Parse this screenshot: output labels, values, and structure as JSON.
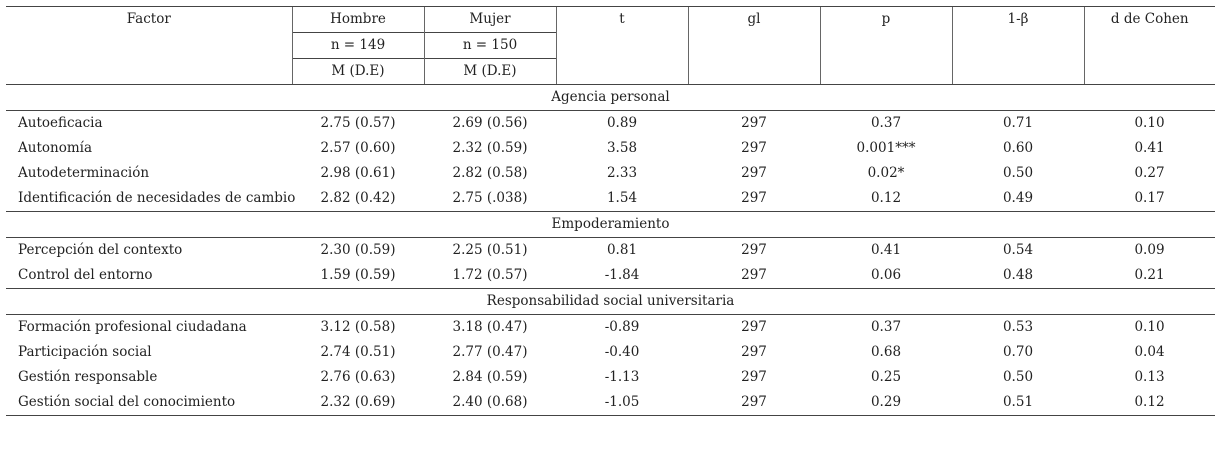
{
  "headers": {
    "factor": "Factor",
    "hombre": "Hombre",
    "mujer": "Mujer",
    "t": "t",
    "gl": "gl",
    "p": "p",
    "power": "1-β",
    "d": "d de Cohen",
    "n_hombre": "n = 149",
    "n_mujer": "n = 150",
    "md_hombre": "M (D.E)",
    "md_mujer": "M (D.E)"
  },
  "sections": [
    {
      "title": "Agencia personal",
      "rows": [
        {
          "factor": "Autoeficacia",
          "hombre": "2.75 (0.57)",
          "mujer": "2.69 (0.56)",
          "t": "0.89",
          "gl": "297",
          "p": "0.37",
          "power": "0.71",
          "d": "0.10"
        },
        {
          "factor": "Autonomía",
          "hombre": "2.57 (0.60)",
          "mujer": "2.32 (0.59)",
          "t": "3.58",
          "gl": "297",
          "p": "0.001***",
          "power": "0.60",
          "d": "0.41"
        },
        {
          "factor": "Autodeterminación",
          "hombre": "2.98 (0.61)",
          "mujer": "2.82 (0.58)",
          "t": "2.33",
          "gl": "297",
          "p": "0.02*",
          "power": "0.50",
          "d": "0.27"
        },
        {
          "factor": "Identificación de necesidades de cambio",
          "hombre": "2.82 (0.42)",
          "mujer": "2.75 (.038)",
          "t": "1.54",
          "gl": "297",
          "p": "0.12",
          "power": "0.49",
          "d": "0.17"
        }
      ]
    },
    {
      "title": "Empoderamiento",
      "rows": [
        {
          "factor": "Percepción del contexto",
          "hombre": "2.30 (0.59)",
          "mujer": "2.25 (0.51)",
          "t": "0.81",
          "gl": "297",
          "p": "0.41",
          "power": "0.54",
          "d": "0.09"
        },
        {
          "factor": "Control del entorno",
          "hombre": "1.59 (0.59)",
          "mujer": "1.72 (0.57)",
          "t": "-1.84",
          "gl": "297",
          "p": "0.06",
          "power": "0.48",
          "d": "0.21"
        }
      ]
    },
    {
      "title": "Responsabilidad social universitaria",
      "rows": [
        {
          "factor": "Formación profesional ciudadana",
          "hombre": "3.12 (0.58)",
          "mujer": "3.18 (0.47)",
          "t": "-0.89",
          "gl": "297",
          "p": "0.37",
          "power": "0.53",
          "d": "0.10"
        },
        {
          "factor": "Participación social",
          "hombre": "2.74 (0.51)",
          "mujer": "2.77 (0.47)",
          "t": "-0.40",
          "gl": "297",
          "p": "0.68",
          "power": "0.70",
          "d": "0.04"
        },
        {
          "factor": "Gestión responsable",
          "hombre": "2.76 (0.63)",
          "mujer": "2.84 (0.59)",
          "t": "-1.13",
          "gl": "297",
          "p": "0.25",
          "power": "0.50",
          "d": "0.13"
        },
        {
          "factor": "Gestión social del conocimiento",
          "hombre": "2.32 (0.69)",
          "mujer": "2.40 (0.68)",
          "t": "-1.05",
          "gl": "297",
          "p": "0.29",
          "power": "0.51",
          "d": "0.12"
        }
      ]
    }
  ]
}
